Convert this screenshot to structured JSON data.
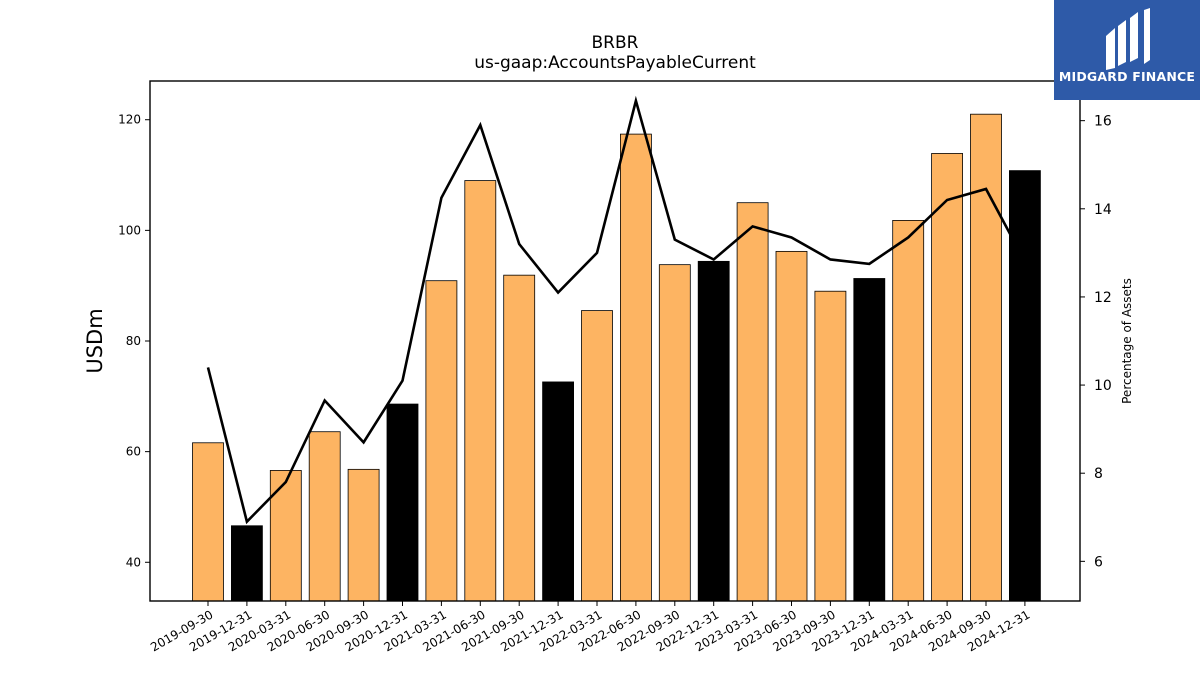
{
  "chart_data": {
    "type": "bar",
    "title": "BRBR",
    "subtitle": "us-gaap:AccountsPayableCurrent",
    "ylabel": "USDm",
    "y2label": "Percentage of Assets",
    "ylim": [
      33,
      127
    ],
    "y2lim": [
      5.1,
      16.9
    ],
    "yticks": [
      40,
      60,
      80,
      100,
      120
    ],
    "y2ticks": [
      6,
      8,
      10,
      12,
      14,
      16
    ],
    "grid": false,
    "categories": [
      "2019-09-30",
      "2019-12-31",
      "2020-03-31",
      "2020-06-30",
      "2020-09-30",
      "2020-12-31",
      "2021-03-31",
      "2021-06-30",
      "2021-09-30",
      "2021-12-31",
      "2022-03-31",
      "2022-06-30",
      "2022-09-30",
      "2022-12-31",
      "2023-03-31",
      "2023-06-30",
      "2023-09-30",
      "2023-12-31",
      "2024-03-31",
      "2024-06-30",
      "2024-09-30",
      "2024-12-31"
    ],
    "series": [
      {
        "axis": "left",
        "kind": "bar",
        "values": [
          61.6,
          46.6,
          56.6,
          63.6,
          56.8,
          68.6,
          90.9,
          109.0,
          91.9,
          72.6,
          85.5,
          117.4,
          93.8,
          94.4,
          105.0,
          96.2,
          89.0,
          91.3,
          101.8,
          113.9,
          121.0,
          110.8
        ],
        "colors": [
          "#fdb462",
          "#000000",
          "#fdb462",
          "#fdb462",
          "#fdb462",
          "#000000",
          "#fdb462",
          "#fdb462",
          "#fdb462",
          "#000000",
          "#fdb462",
          "#fdb462",
          "#fdb462",
          "#000000",
          "#fdb462",
          "#fdb462",
          "#fdb462",
          "#000000",
          "#fdb462",
          "#fdb462",
          "#fdb462",
          "#000000"
        ]
      },
      {
        "axis": "right",
        "kind": "line",
        "color": "#000000",
        "values": [
          10.4,
          6.9,
          7.8,
          9.65,
          8.7,
          10.1,
          14.25,
          15.9,
          13.2,
          12.1,
          13.0,
          16.45,
          13.3,
          12.85,
          13.6,
          13.35,
          12.85,
          12.75,
          13.35,
          14.2,
          14.45,
          12.8
        ]
      }
    ]
  },
  "brand": {
    "name": "MIDGARD FINANCE",
    "background": "#2e5aa8"
  }
}
